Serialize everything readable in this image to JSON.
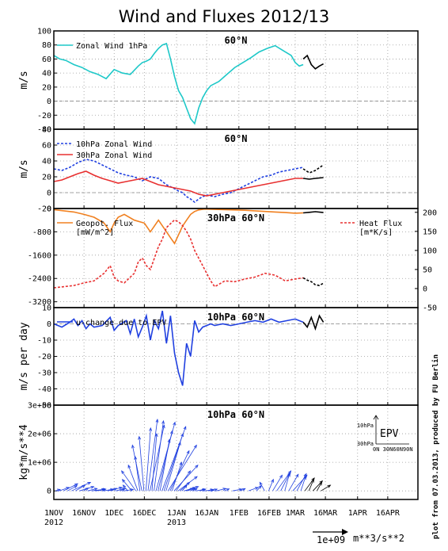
{
  "figure": {
    "title": "Wind and Fluxes 2012/13",
    "credit": "plot from 07.03.2013, produced by FU Berlin",
    "date_labels": [
      {
        "day": 0,
        "text": "1NOV",
        "year": "2012"
      },
      {
        "day": 15,
        "text": "16NOV"
      },
      {
        "day": 30,
        "text": "1DEC"
      },
      {
        "day": 45,
        "text": "16DEC"
      },
      {
        "day": 61,
        "text": "1JAN",
        "year": "2013"
      },
      {
        "day": 76,
        "text": "16JAN"
      },
      {
        "day": 92,
        "text": "1FEB"
      },
      {
        "day": 107,
        "text": "16FEB"
      },
      {
        "day": 120,
        "text": "1MAR"
      },
      {
        "day": 135,
        "text": "16MAR"
      },
      {
        "day": 151,
        "text": "1APR"
      },
      {
        "day": 166,
        "text": "16APR"
      }
    ],
    "x_range_days": [
      0,
      181
    ],
    "scale_arrow_label": "1e+09",
    "scale_arrow_unit": "m**3/s**2"
  },
  "chart_data": [
    {
      "type": "line",
      "title": "60°N",
      "ylabel": "m/s",
      "ylim": [
        -40,
        100
      ],
      "yticks": [
        -40,
        -20,
        0,
        20,
        40,
        60,
        80,
        100
      ],
      "grid": true,
      "legend_position": "top-left",
      "series": [
        {
          "name": "Zonal Wind 1hPa",
          "color": "#1ec8c8",
          "style": "solid",
          "x": [
            0,
            3,
            6,
            10,
            14,
            18,
            22,
            26,
            30,
            34,
            38,
            42,
            44,
            46,
            48,
            50,
            52,
            54,
            56,
            58,
            60,
            62,
            64,
            66,
            68,
            70,
            72,
            74,
            76,
            78,
            82,
            86,
            90,
            94,
            98,
            102,
            106,
            110,
            114,
            118,
            120,
            122,
            124
          ],
          "y": [
            65,
            60,
            58,
            52,
            48,
            42,
            38,
            32,
            45,
            40,
            38,
            50,
            55,
            57,
            60,
            68,
            75,
            80,
            82,
            60,
            35,
            15,
            5,
            -10,
            -25,
            -32,
            -10,
            5,
            15,
            22,
            28,
            38,
            48,
            55,
            62,
            70,
            75,
            79,
            72,
            65,
            55,
            50,
            52
          ]
        },
        {
          "name": "",
          "color": "#000000",
          "style": "solid",
          "x": [
            124,
            126,
            128,
            130,
            132,
            134
          ],
          "y": [
            60,
            65,
            52,
            46,
            50,
            53
          ]
        }
      ]
    },
    {
      "type": "line",
      "title": "60°N",
      "ylabel": "m/s",
      "ylim": [
        -20,
        80
      ],
      "yticks": [
        -20,
        0,
        20,
        40,
        60,
        80
      ],
      "grid": true,
      "legend_position": "top-left",
      "series": [
        {
          "name": "10hPa Zonal Wind",
          "color": "#2040e0",
          "style": "dashed",
          "x": [
            0,
            4,
            8,
            12,
            16,
            20,
            24,
            28,
            32,
            36,
            40,
            44,
            48,
            52,
            56,
            60,
            62,
            64,
            66,
            68,
            70,
            72,
            74,
            76,
            80,
            84,
            88,
            92,
            96,
            100,
            104,
            108,
            112,
            116,
            120,
            124
          ],
          "y": [
            30,
            28,
            32,
            38,
            42,
            40,
            35,
            30,
            25,
            22,
            20,
            15,
            20,
            18,
            10,
            5,
            2,
            0,
            -5,
            -8,
            -12,
            -8,
            -5,
            -3,
            -5,
            -2,
            0,
            5,
            10,
            15,
            20,
            22,
            26,
            28,
            30,
            32
          ]
        },
        {
          "name": "",
          "color": "#000000",
          "style": "dashed",
          "x": [
            124,
            127,
            130,
            134
          ],
          "y": [
            30,
            25,
            28,
            35
          ]
        },
        {
          "name": "30hPa Zonal Wind",
          "color": "#e83030",
          "style": "solid",
          "x": [
            0,
            4,
            8,
            12,
            16,
            20,
            24,
            28,
            32,
            36,
            40,
            44,
            48,
            52,
            56,
            60,
            64,
            68,
            72,
            76,
            80,
            84,
            88,
            92,
            96,
            100,
            104,
            108,
            112,
            116,
            120,
            124
          ],
          "y": [
            14,
            16,
            20,
            24,
            27,
            22,
            18,
            15,
            12,
            14,
            16,
            18,
            14,
            10,
            8,
            6,
            4,
            2,
            -2,
            -4,
            -2,
            0,
            2,
            4,
            6,
            8,
            10,
            12,
            14,
            16,
            18,
            18
          ]
        },
        {
          "name": "",
          "color": "#000000",
          "style": "solid",
          "x": [
            124,
            127,
            130,
            134
          ],
          "y": [
            18,
            17,
            18,
            19
          ]
        }
      ]
    },
    {
      "type": "line",
      "title": "30hPa 60°N",
      "ylim_left": [
        -3400,
        0
      ],
      "yticks_left": [
        -3200,
        -2400,
        -1600,
        -800,
        0
      ],
      "ylim_right": [
        -50,
        210
      ],
      "yticks_right": [
        -50,
        0,
        50,
        100,
        150,
        200
      ],
      "grid": true,
      "series": [
        {
          "name": "Geopot. Flux",
          "units": "[mW/m^2]",
          "axis": "left",
          "color": "#f08020",
          "style": "solid",
          "x": [
            0,
            5,
            10,
            15,
            20,
            25,
            28,
            30,
            32,
            35,
            40,
            45,
            48,
            50,
            52,
            55,
            58,
            60,
            62,
            64,
            66,
            68,
            70,
            72,
            75,
            80,
            85,
            90,
            95,
            100,
            105,
            110,
            115,
            120,
            124
          ],
          "y": [
            -40,
            -80,
            -120,
            -200,
            -300,
            -500,
            -800,
            -500,
            -300,
            -200,
            -400,
            -500,
            -800,
            -600,
            -400,
            -700,
            -1000,
            -1200,
            -900,
            -600,
            -400,
            -200,
            -100,
            -50,
            -20,
            -30,
            -40,
            -50,
            -60,
            -80,
            -100,
            -120,
            -140,
            -160,
            -150
          ]
        },
        {
          "name": "Heat Flux",
          "units": "[m*K/s]",
          "axis": "right",
          "color": "#e83030",
          "style": "dashed",
          "x": [
            0,
            5,
            10,
            15,
            20,
            25,
            28,
            30,
            32,
            35,
            40,
            42,
            44,
            46,
            48,
            50,
            52,
            54,
            56,
            58,
            60,
            62,
            64,
            66,
            68,
            70,
            72,
            74,
            76,
            78,
            80,
            85,
            90,
            95,
            100,
            105,
            110,
            115,
            120,
            124
          ],
          "y": [
            2,
            5,
            8,
            15,
            20,
            40,
            60,
            30,
            20,
            15,
            40,
            70,
            80,
            60,
            50,
            80,
            110,
            130,
            160,
            170,
            180,
            175,
            165,
            150,
            130,
            100,
            80,
            60,
            40,
            20,
            5,
            20,
            18,
            25,
            30,
            40,
            35,
            20,
            25,
            28
          ]
        },
        {
          "name": "",
          "axis": "right",
          "color": "#000000",
          "style": "dashed",
          "x": [
            124,
            126,
            128,
            130,
            132,
            134
          ],
          "y": [
            28,
            22,
            18,
            10,
            8,
            14
          ]
        },
        {
          "name": "",
          "axis": "left",
          "color": "#000000",
          "style": "solid",
          "x": [
            124,
            127,
            130,
            134
          ],
          "y": [
            -150,
            -130,
            -110,
            -140
          ]
        }
      ]
    },
    {
      "type": "line",
      "title": "10hPa 60°N",
      "ylabel": "m/s per day",
      "ylim": [
        -50,
        10
      ],
      "yticks": [
        -50,
        -40,
        -30,
        -20,
        -10,
        0,
        10
      ],
      "grid": true,
      "legend_position": "top-left",
      "series": [
        {
          "name": "u-change due to EPV",
          "color": "#2040e0",
          "style": "solid",
          "x": [
            0,
            4,
            8,
            10,
            12,
            14,
            16,
            18,
            20,
            24,
            28,
            30,
            32,
            36,
            38,
            40,
            42,
            44,
            46,
            48,
            50,
            52,
            54,
            56,
            58,
            60,
            62,
            64,
            66,
            68,
            70,
            72,
            74,
            76,
            78,
            80,
            84,
            88,
            92,
            96,
            100,
            104,
            108,
            112,
            116,
            120,
            124
          ],
          "y": [
            0,
            -2,
            1,
            3,
            -1,
            2,
            -3,
            0,
            -2,
            -1,
            4,
            -4,
            -1,
            2,
            -6,
            3,
            -8,
            -2,
            5,
            -10,
            2,
            -3,
            8,
            -12,
            5,
            -18,
            -30,
            -38,
            -12,
            -20,
            2,
            -5,
            -2,
            -1,
            0,
            -1,
            0,
            -1,
            0,
            1,
            2,
            1,
            3,
            1,
            2,
            3,
            1
          ]
        },
        {
          "name": "",
          "color": "#000000",
          "style": "solid",
          "x": [
            124,
            126,
            128,
            130,
            132,
            134
          ],
          "y": [
            1,
            -2,
            4,
            -3,
            5,
            1
          ]
        }
      ]
    },
    {
      "type": "vector",
      "title": "10hPa 60°N",
      "ylabel": "kg*m/s**4",
      "ylim": [
        -300000,
        3000000
      ],
      "yticks": [
        0,
        1000000,
        2000000,
        3000000
      ],
      "ytick_labels": [
        "0",
        "1e+06",
        "2e+06",
        "3e+06"
      ],
      "grid": true,
      "inset": {
        "label": "EPV",
        "y_label": "10hPa",
        "y_label_low": "30hPa",
        "x_labels": "0N 30N60N90N"
      },
      "arrow_color": "#2040e0",
      "arrow_color_forecast": "#000000",
      "arrows": {
        "x": [
          0,
          2,
          4,
          6,
          8,
          10,
          12,
          14,
          16,
          18,
          20,
          22,
          24,
          26,
          28,
          30,
          32,
          34,
          36,
          38,
          40,
          41,
          42,
          43,
          44,
          45,
          46,
          47,
          48,
          49,
          50,
          51,
          52,
          53,
          54,
          55,
          56,
          57,
          58,
          59,
          60,
          61,
          62,
          63,
          64,
          65,
          66,
          67,
          68,
          70,
          72,
          74,
          76,
          78,
          80,
          84,
          88,
          92,
          96,
          100,
          104,
          106,
          108,
          110,
          112,
          114,
          116,
          118,
          120,
          122,
          124,
          126,
          128,
          130,
          132
        ],
        "u": [
          1,
          2,
          3,
          2,
          4,
          2,
          3,
          1,
          2,
          3,
          2,
          1,
          2,
          3,
          1,
          2,
          1,
          2,
          -1,
          -2,
          -3,
          -2,
          -1,
          -2,
          -1,
          1,
          2,
          3,
          1,
          2,
          4,
          3,
          2,
          5,
          4,
          3,
          6,
          4,
          2,
          5,
          3,
          4,
          2,
          1,
          3,
          2,
          1,
          1,
          1,
          2,
          1,
          2,
          1,
          1,
          2,
          1,
          2,
          1,
          2,
          1,
          -1,
          1,
          2,
          3,
          2,
          1,
          2,
          3,
          2,
          1,
          2,
          1,
          2,
          1,
          2
        ],
        "v": [
          50000,
          120000,
          250000,
          180000,
          300000,
          200000,
          150000,
          100000,
          80000,
          60000,
          50000,
          80000,
          60000,
          120000,
          90000,
          80000,
          60000,
          50000,
          200000,
          400000,
          700000,
          900000,
          1200000,
          1600000,
          1900000,
          2200000,
          2500000,
          2300000,
          2000000,
          2450000,
          2400000,
          2100000,
          1800000,
          2250000,
          2000000,
          1700000,
          1600000,
          1400000,
          1000000,
          900000,
          700000,
          500000,
          300000,
          200000,
          150000,
          120000,
          100000,
          80000,
          70000,
          60000,
          50000,
          40000,
          50000,
          60000,
          80000,
          70000,
          60000,
          80000,
          120000,
          180000,
          300000,
          400000,
          550000,
          700000,
          650000,
          600000,
          580000,
          550000,
          600000,
          500000,
          450000,
          400000,
          350000,
          300000,
          200000
        ]
      },
      "forecast_from_day": 124
    }
  ]
}
